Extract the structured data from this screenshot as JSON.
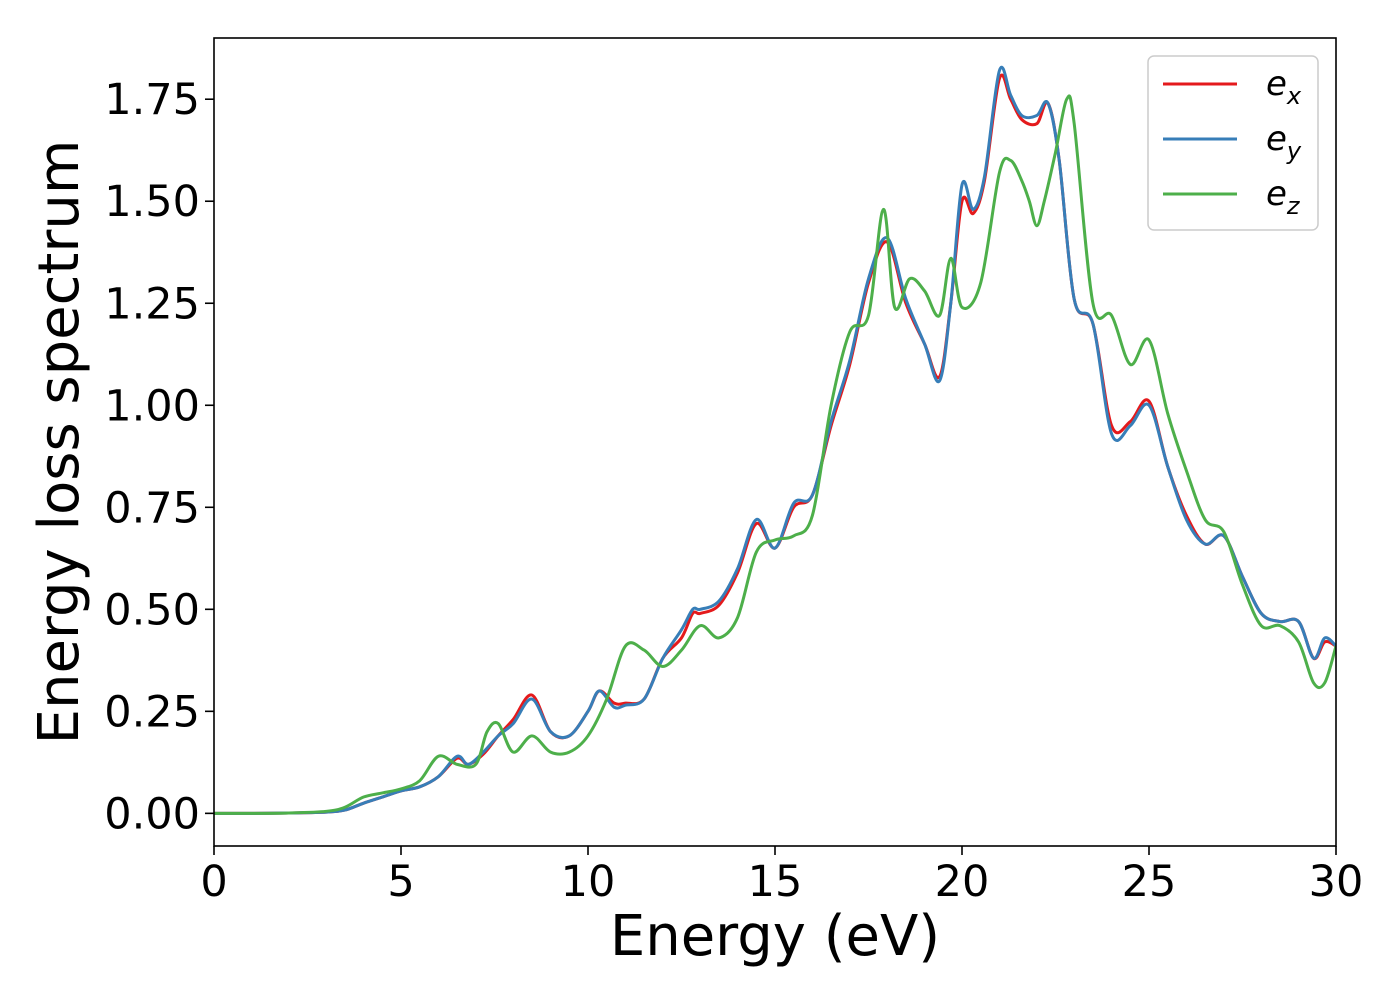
{
  "chart_data": {
    "type": "line",
    "title": "",
    "xlabel": "Energy (eV)",
    "ylabel": "Energy loss spectrum",
    "xlim": [
      0,
      30
    ],
    "ylim": [
      -0.08,
      1.9
    ],
    "xticks": [
      0,
      5,
      10,
      15,
      20,
      25,
      30
    ],
    "xtick_labels": [
      "0",
      "5",
      "10",
      "15",
      "20",
      "25",
      "30"
    ],
    "yticks": [
      0,
      0.25,
      0.5,
      0.75,
      1.0,
      1.25,
      1.5,
      1.75
    ],
    "ytick_labels": [
      "0.00",
      "0.25",
      "0.50",
      "0.75",
      "1.00",
      "1.25",
      "1.50",
      "1.75"
    ],
    "grid": false,
    "legend_position": "top-right",
    "series": [
      {
        "name": "e",
        "subscript": "x",
        "color": "#e41a1c",
        "x": [
          0,
          1,
          2,
          3,
          3.5,
          4,
          4.5,
          5,
          5.5,
          6,
          6.5,
          6.8,
          7.2,
          7.6,
          8,
          8.5,
          9,
          9.5,
          10,
          10.3,
          10.7,
          11,
          11.5,
          12,
          12.5,
          12.8,
          13,
          13.5,
          14,
          14.5,
          15,
          15.5,
          16,
          16.5,
          17,
          17.5,
          18,
          18.5,
          19,
          19.4,
          19.7,
          20,
          20.3,
          20.6,
          21,
          21.3,
          21.6,
          22,
          22.3,
          22.6,
          23,
          23.5,
          24,
          24.5,
          25,
          25.5,
          26,
          26.5,
          27,
          27.5,
          28,
          28.5,
          29,
          29.4,
          29.7,
          30
        ],
        "y": [
          0,
          0,
          0.001,
          0.003,
          0.008,
          0.025,
          0.04,
          0.055,
          0.065,
          0.09,
          0.135,
          0.12,
          0.145,
          0.19,
          0.23,
          0.29,
          0.2,
          0.19,
          0.25,
          0.3,
          0.27,
          0.27,
          0.28,
          0.38,
          0.43,
          0.49,
          0.49,
          0.51,
          0.59,
          0.71,
          0.65,
          0.75,
          0.78,
          0.95,
          1.1,
          1.3,
          1.4,
          1.25,
          1.15,
          1.07,
          1.25,
          1.5,
          1.47,
          1.55,
          1.8,
          1.75,
          1.7,
          1.69,
          1.74,
          1.6,
          1.26,
          1.2,
          0.95,
          0.96,
          1.01,
          0.85,
          0.73,
          0.66,
          0.68,
          0.58,
          0.49,
          0.47,
          0.47,
          0.38,
          0.42,
          0.41
        ]
      },
      {
        "name": "e",
        "subscript": "y",
        "color": "#377eb8",
        "x": [
          0,
          1,
          2,
          3,
          3.5,
          4,
          4.5,
          5,
          5.5,
          6,
          6.5,
          6.8,
          7.2,
          7.6,
          8,
          8.5,
          9,
          9.5,
          10,
          10.3,
          10.7,
          11,
          11.5,
          12,
          12.5,
          12.8,
          13,
          13.5,
          14,
          14.5,
          15,
          15.5,
          16,
          16.5,
          17,
          17.5,
          18,
          18.5,
          19,
          19.4,
          19.7,
          20,
          20.3,
          20.6,
          21,
          21.3,
          21.6,
          22,
          22.3,
          22.6,
          23,
          23.5,
          24,
          24.5,
          25,
          25.5,
          26,
          26.5,
          27,
          27.5,
          28,
          28.5,
          29,
          29.4,
          29.7,
          30
        ],
        "y": [
          0,
          0,
          0.001,
          0.003,
          0.008,
          0.025,
          0.04,
          0.055,
          0.065,
          0.09,
          0.14,
          0.12,
          0.15,
          0.19,
          0.22,
          0.28,
          0.2,
          0.19,
          0.25,
          0.3,
          0.26,
          0.265,
          0.28,
          0.38,
          0.45,
          0.5,
          0.5,
          0.52,
          0.6,
          0.72,
          0.65,
          0.76,
          0.78,
          0.96,
          1.11,
          1.31,
          1.41,
          1.26,
          1.15,
          1.06,
          1.25,
          1.54,
          1.48,
          1.56,
          1.82,
          1.76,
          1.71,
          1.71,
          1.74,
          1.6,
          1.26,
          1.2,
          0.93,
          0.95,
          1.0,
          0.85,
          0.72,
          0.66,
          0.68,
          0.58,
          0.49,
          0.47,
          0.47,
          0.38,
          0.43,
          0.41
        ]
      },
      {
        "name": "e",
        "subscript": "z",
        "color": "#4daf4a",
        "x": [
          0,
          1,
          2,
          3,
          3.5,
          4,
          4.5,
          5,
          5.5,
          6,
          6.5,
          7,
          7.3,
          7.6,
          8,
          8.5,
          9,
          9.5,
          10,
          10.5,
          11,
          11.5,
          12,
          12.5,
          13,
          13.5,
          14,
          14.5,
          15,
          15.5,
          16,
          16.5,
          17,
          17.5,
          17.9,
          18.2,
          18.6,
          19,
          19.4,
          19.7,
          20,
          20.5,
          21,
          21.3,
          21.6,
          21.8,
          22,
          22.2,
          22.5,
          22.8,
          23,
          23.5,
          24,
          24.5,
          25,
          25.5,
          26,
          26.5,
          27,
          27.5,
          28,
          28.5,
          29,
          29.4,
          29.7,
          30
        ],
        "y": [
          0,
          0,
          0.001,
          0.005,
          0.015,
          0.04,
          0.05,
          0.06,
          0.08,
          0.14,
          0.12,
          0.12,
          0.2,
          0.22,
          0.15,
          0.19,
          0.15,
          0.15,
          0.19,
          0.28,
          0.41,
          0.4,
          0.36,
          0.4,
          0.46,
          0.43,
          0.48,
          0.64,
          0.67,
          0.68,
          0.73,
          1.0,
          1.18,
          1.22,
          1.48,
          1.24,
          1.31,
          1.28,
          1.22,
          1.36,
          1.24,
          1.3,
          1.57,
          1.6,
          1.55,
          1.5,
          1.44,
          1.5,
          1.62,
          1.75,
          1.69,
          1.25,
          1.22,
          1.1,
          1.16,
          0.98,
          0.84,
          0.72,
          0.69,
          0.56,
          0.46,
          0.46,
          0.42,
          0.32,
          0.32,
          0.41
        ]
      }
    ]
  }
}
